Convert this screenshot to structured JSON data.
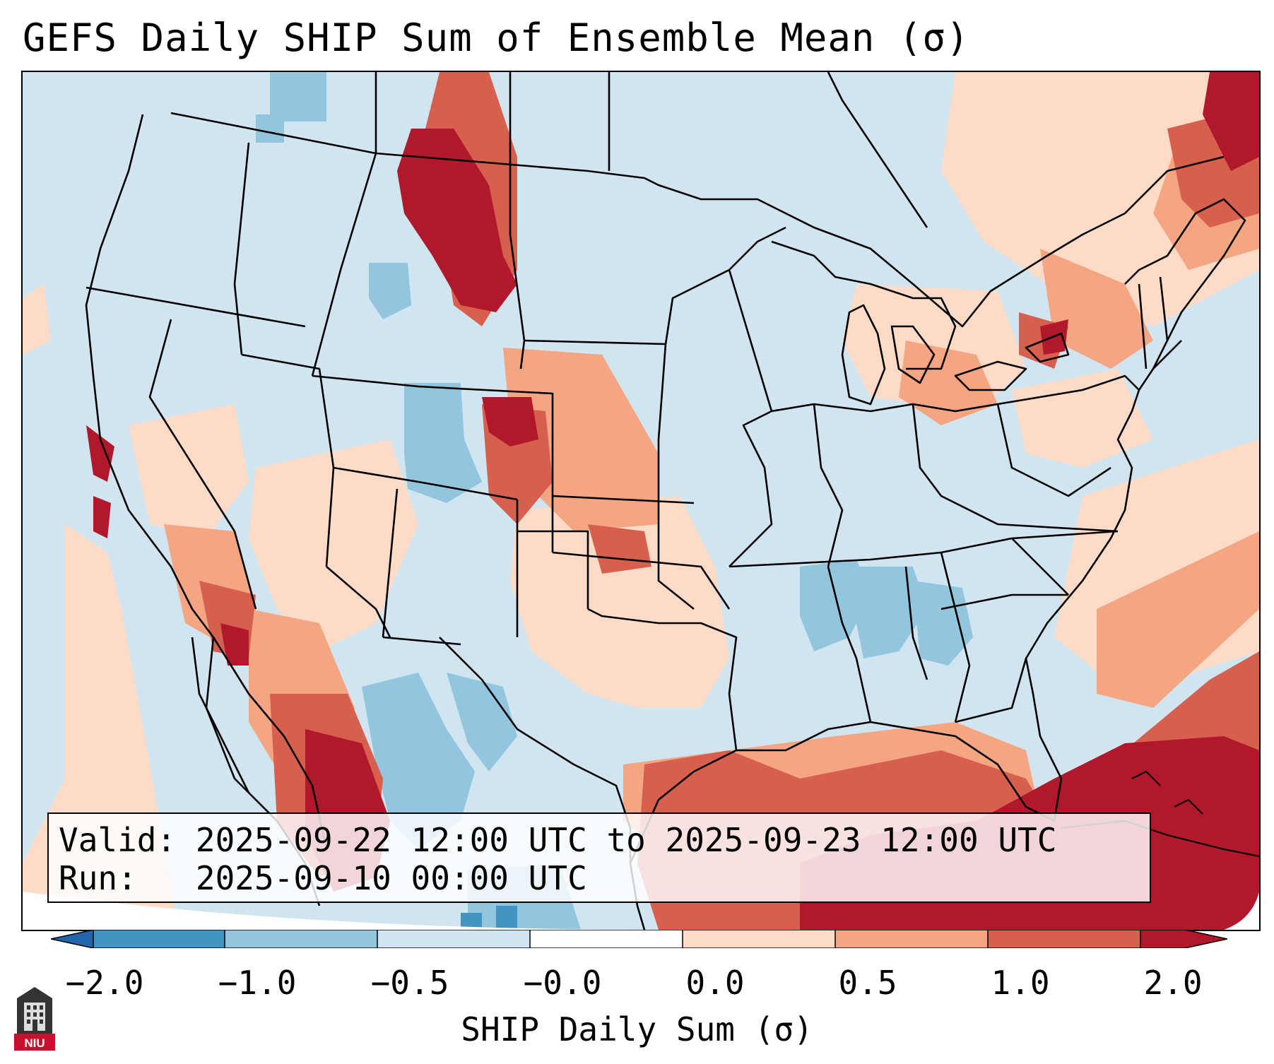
{
  "title": "GEFS Daily SHIP Sum of Ensemble Mean (σ)",
  "info": {
    "valid_label": "Valid:",
    "valid_value": "2025-09-22 12:00 UTC to 2025-09-23 12:00 UTC",
    "run_label": "Run:",
    "run_value": "2025-09-10 00:00 UTC"
  },
  "colorbar": {
    "label": "SHIP Daily Sum (σ)",
    "ticks": [
      "−2.0",
      "−1.0",
      "−0.5",
      "−0.0",
      "0.0",
      "0.5",
      "1.0",
      "2.0"
    ],
    "colors": [
      "#4393c3",
      "#92c5de",
      "#d1e5f0",
      "#fddbc7",
      "#f4a582",
      "#d6604d",
      "#b2182b"
    ],
    "extend": "both"
  },
  "map": {
    "region": "Contiguous United States, Mexico, Gulf of Mexico",
    "ocean_color": "#cfe3ee"
  },
  "logo": {
    "text": "NIU"
  }
}
